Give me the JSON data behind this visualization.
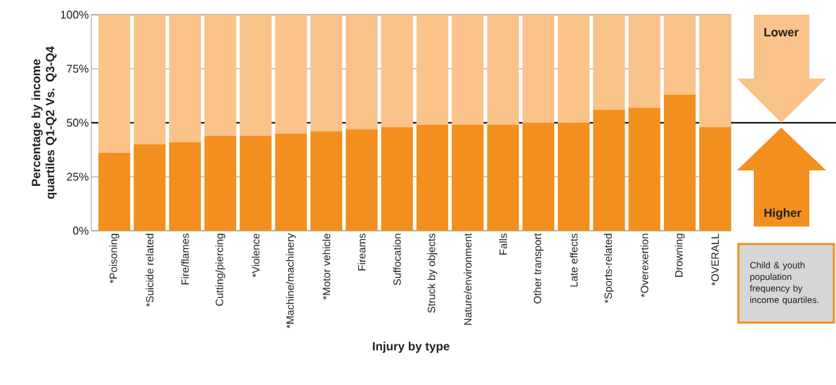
{
  "chart_data": {
    "type": "bar",
    "stacked": true,
    "xlabel": "Injury by type",
    "ylabel": "Percentage by income quartiles Q1-Q2  Vs. Q3-Q4",
    "categories": [
      "*Poisoning",
      "*Suicide related",
      "Fire/flames",
      "Cutting/piercing",
      "*Violence",
      "*Machine/machinery",
      "*Motor vehicle",
      "Fireams",
      "Suffocation",
      "Struck by objects",
      "Nature/environment",
      "Falls",
      "Other transport",
      "Late effects",
      "*Sports-related",
      "*Overexertion",
      "Drowning",
      "*OVERALL"
    ],
    "series": [
      {
        "color": "#f28f1f",
        "values": [
          36,
          40,
          41,
          44,
          44,
          45,
          46,
          47,
          48,
          49,
          49,
          49,
          50,
          50,
          56,
          57,
          63,
          48
        ]
      },
      {
        "color": "#f9c38a",
        "values": [
          64,
          60,
          59,
          56,
          56,
          55,
          54,
          53,
          52,
          51,
          51,
          51,
          50,
          50,
          44,
          43,
          37,
          52
        ]
      }
    ],
    "ylim": [
      0,
      100
    ],
    "yticks": [
      {
        "value": 0,
        "label": "0%"
      },
      {
        "value": 25,
        "label": "25%"
      },
      {
        "value": 50,
        "label": "50%"
      },
      {
        "value": 75,
        "label": "75%"
      },
      {
        "value": 100,
        "label": "100%"
      }
    ],
    "grid": "y",
    "ref_lines": [
      {
        "axis": "y",
        "value": 50,
        "color": "#1e1e1e"
      }
    ],
    "annotations": [
      "Lower",
      "Higher",
      "Child & youth population frequency by income quartiles."
    ]
  }
}
